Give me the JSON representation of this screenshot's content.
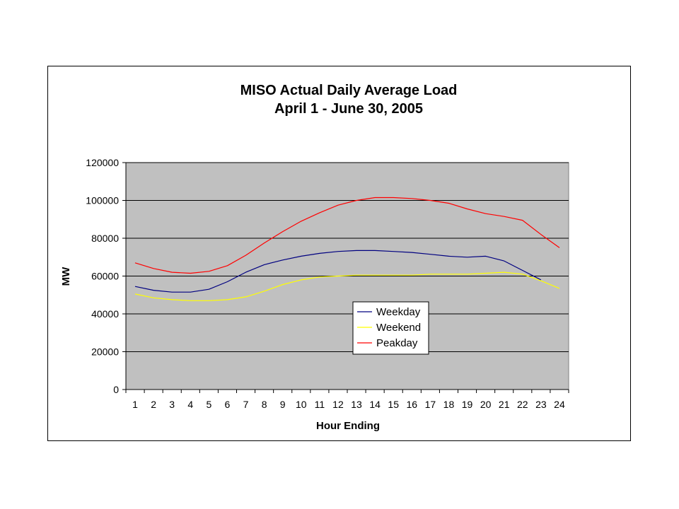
{
  "chart_data": {
    "type": "line",
    "title": "MISO Actual Daily Average Load",
    "subtitle": "April 1 - June 30, 2005",
    "xlabel": "Hour Ending",
    "ylabel": "MW",
    "x": [
      1,
      2,
      3,
      4,
      5,
      6,
      7,
      8,
      9,
      10,
      11,
      12,
      13,
      14,
      15,
      16,
      17,
      18,
      19,
      20,
      21,
      22,
      23,
      24
    ],
    "ylim": [
      0,
      120000
    ],
    "yticks": [
      0,
      20000,
      40000,
      60000,
      80000,
      100000,
      120000
    ],
    "grid": true,
    "legend_position": "bottom-center",
    "series": [
      {
        "name": "Weekday",
        "color": "#000080",
        "values": [
          54500,
          52500,
          51500,
          51500,
          53000,
          57000,
          62000,
          66000,
          68500,
          70500,
          72000,
          73000,
          73500,
          73500,
          73000,
          72500,
          71500,
          70500,
          70000,
          70500,
          68000,
          63000,
          58000,
          null
        ]
      },
      {
        "name": "Weekend",
        "color": "#ffff00",
        "values": [
          50500,
          48500,
          47500,
          47000,
          47000,
          47500,
          49000,
          52000,
          55500,
          58000,
          59500,
          60000,
          60500,
          60500,
          60500,
          60500,
          61000,
          61000,
          61000,
          61500,
          62000,
          61000,
          57500,
          53500
        ]
      },
      {
        "name": "Peakday",
        "color": "#ff0000",
        "values": [
          67000,
          64000,
          62000,
          61500,
          62500,
          65500,
          71000,
          77500,
          83500,
          89000,
          93500,
          97500,
          100000,
          101500,
          101500,
          101000,
          100000,
          98500,
          95500,
          93000,
          91500,
          89500,
          82000,
          75000
        ]
      }
    ]
  },
  "colors": {
    "plot_background": "#c0c0c0",
    "gridline": "#000000",
    "frame": "#000000"
  }
}
